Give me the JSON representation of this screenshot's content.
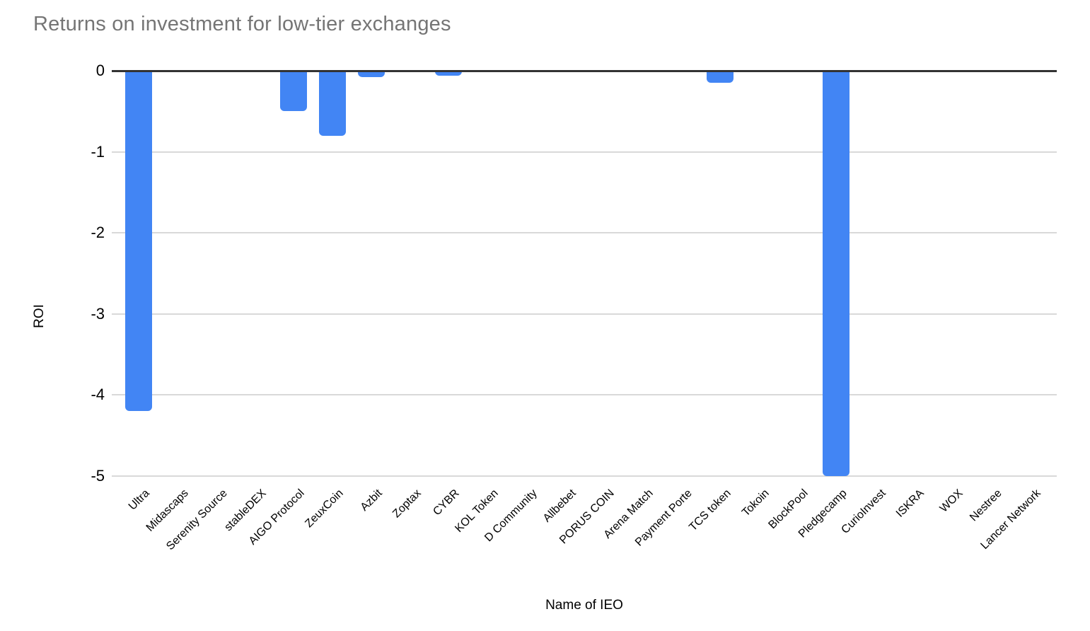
{
  "chart_data": {
    "type": "bar",
    "title": "Returns on investment for low-tier exchanges",
    "xlabel": "Name of IEO",
    "ylabel": "ROI",
    "ylim": [
      -5,
      0
    ],
    "yticks": [
      0,
      -1,
      -2,
      -3,
      -4,
      -5
    ],
    "grid": true,
    "legend": false,
    "orientation": "vertical",
    "categories": [
      "Ultra",
      "Midascaps",
      "Serenity Source",
      "stableDEX",
      "AIGO Protocol",
      "ZeuxCoin",
      "Azbit",
      "Zoptax",
      "CYBR",
      "KOL Token",
      "D Community",
      "Allbebet",
      "PORUS COIN",
      "Arena Match",
      "Payment Porte",
      "TCS token",
      "Tokoin",
      "BlockPool",
      "Pledgecamp",
      "CurioInvest",
      "ISKRA",
      "WOX",
      "Nestree",
      "Lancer Network"
    ],
    "values": [
      -4.2,
      0,
      0,
      0,
      -0.5,
      -0.8,
      -0.08,
      0,
      -0.06,
      0,
      -0.02,
      0,
      0,
      0,
      0,
      -0.15,
      0,
      0,
      -5,
      0,
      0,
      0,
      0,
      0
    ],
    "colors": {
      "bar": "#4285f4",
      "title_text": "#757575",
      "grid_line": "#d9d9d9",
      "zero_axis_line": "#333333",
      "tick_text": "#000000"
    }
  }
}
